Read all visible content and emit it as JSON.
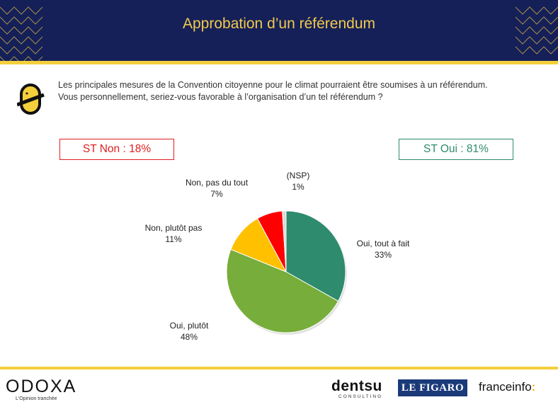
{
  "header": {
    "title": "Approbation d’un référendum"
  },
  "question": {
    "line1": "Les principales mesures de la Convention citoyenne pour le climat pourraient être soumises à un référendum.",
    "line2": "Vous personnellement, seriez-vous favorable à l’organisation d’un tel référendum ?"
  },
  "summary": {
    "st_non": "ST Non : 18%",
    "st_oui": "ST Oui : 81%"
  },
  "colors": {
    "header_bg": "#152058",
    "gold": "#f4cf3c",
    "non": "#e02020",
    "oui": "#2e8b6e"
  },
  "chart_data": {
    "type": "pie",
    "slices": [
      {
        "label": "Oui, tout à fait",
        "value": 33,
        "value_label": "33%",
        "color": "#2e8b6e"
      },
      {
        "label": "Oui, plutôt",
        "value": 48,
        "value_label": "48%",
        "color": "#77ad3a"
      },
      {
        "label": "Non, plutôt pas",
        "value": 11,
        "value_label": "11%",
        "color": "#ffc000"
      },
      {
        "label": "Non, pas du tout",
        "value": 7,
        "value_label": "7%",
        "color": "#ff0000"
      },
      {
        "label": "(NSP)",
        "value": 1,
        "value_label": "1%",
        "color": "#d9d9d9"
      }
    ]
  },
  "footer": {
    "odoxa": "ODOXA",
    "odoxa_tagline": "L'Opinion tranchée",
    "dentsu": "dentsu",
    "dentsu_sub": "CONSULTING",
    "figaro": "LE FIGARO",
    "franceinfo": "franceinfo",
    "franceinfo_colon": ":"
  }
}
